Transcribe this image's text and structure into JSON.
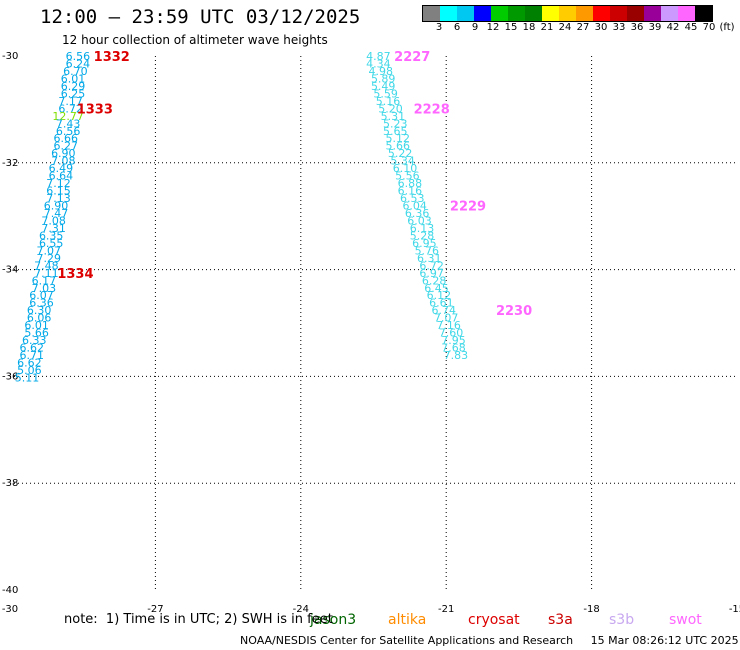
{
  "header": {
    "title": "12:00 – 23:59 UTC 03/12/2025",
    "subtitle": "12 hour collection of altimeter wave heights"
  },
  "colorbar": {
    "colors": [
      "#808080",
      "#00ffff",
      "#00c8f0",
      "#0000ff",
      "#00cc00",
      "#009900",
      "#008000",
      "#ffff00",
      "#ffcc00",
      "#ff9900",
      "#ff0000",
      "#cc0000",
      "#990000",
      "#990099",
      "#cc99ff",
      "#ff66ff",
      "#000000"
    ],
    "labels": [
      "3",
      "6",
      "9",
      "12",
      "15",
      "18",
      "21",
      "24",
      "27",
      "30",
      "33",
      "36",
      "39",
      "42",
      "45",
      "70",
      "(ft)"
    ]
  },
  "chart_data": {
    "type": "scatter",
    "title": "12:00 – 23:59 UTC 03/12/2025",
    "subtitle": "12 hour collection of altimeter wave heights",
    "xlim": [
      -30,
      -15
    ],
    "ylim": [
      -40,
      -30
    ],
    "x_ticks": [
      "-30",
      "-27",
      "-24",
      "-21",
      "-18",
      "-15"
    ],
    "y_ticks": [
      "-30",
      "-32",
      "-34",
      "-36",
      "-38",
      "-40"
    ],
    "grid": true,
    "tracks": [
      {
        "satellite": "jason3",
        "color": "#00a8e8",
        "points": [
          {
            "x": -28.6,
            "y": -30.0,
            "v": "6.56"
          },
          {
            "x": -28.6,
            "y": -30.14,
            "v": "6.24"
          },
          {
            "x": -28.65,
            "y": -30.28,
            "v": "6.70"
          },
          {
            "x": -28.7,
            "y": -30.42,
            "v": "6.01"
          },
          {
            "x": -28.7,
            "y": -30.56,
            "v": "6.29"
          },
          {
            "x": -28.7,
            "y": -30.7,
            "v": "6.25"
          },
          {
            "x": -28.75,
            "y": -30.84,
            "v": "7.17"
          },
          {
            "x": -28.75,
            "y": -30.98,
            "v": "6.72"
          },
          {
            "x": -28.8,
            "y": -31.12,
            "v": "12.77",
            "c": "#7fe000"
          },
          {
            "x": -28.8,
            "y": -31.26,
            "v": "7.43"
          },
          {
            "x": -28.8,
            "y": -31.4,
            "v": "6.56"
          },
          {
            "x": -28.85,
            "y": -31.54,
            "v": "6.66"
          },
          {
            "x": -28.85,
            "y": -31.68,
            "v": "6.27"
          },
          {
            "x": -28.9,
            "y": -31.82,
            "v": "6.90"
          },
          {
            "x": -28.9,
            "y": -31.96,
            "v": "7.08"
          },
          {
            "x": -28.95,
            "y": -32.1,
            "v": "6.49"
          },
          {
            "x": -28.95,
            "y": -32.24,
            "v": "6.64"
          },
          {
            "x": -29.0,
            "y": -32.38,
            "v": "7.12"
          },
          {
            "x": -29.0,
            "y": -32.52,
            "v": "6.15"
          },
          {
            "x": -29.0,
            "y": -32.66,
            "v": "7.13"
          },
          {
            "x": -29.05,
            "y": -32.8,
            "v": "6.90"
          },
          {
            "x": -29.05,
            "y": -32.94,
            "v": "7.47"
          },
          {
            "x": -29.1,
            "y": -33.08,
            "v": "7.08"
          },
          {
            "x": -29.1,
            "y": -33.22,
            "v": "7.31"
          },
          {
            "x": -29.15,
            "y": -33.36,
            "v": "6.35"
          },
          {
            "x": -29.15,
            "y": -33.5,
            "v": "6.55"
          },
          {
            "x": -29.2,
            "y": -33.64,
            "v": "7.07"
          },
          {
            "x": -29.2,
            "y": -33.78,
            "v": "7.29"
          },
          {
            "x": -29.25,
            "y": -33.92,
            "v": "7.48"
          },
          {
            "x": -29.25,
            "y": -34.06,
            "v": "7.11"
          },
          {
            "x": -29.3,
            "y": -34.2,
            "v": "6.17"
          },
          {
            "x": -29.3,
            "y": -34.34,
            "v": "7.03"
          },
          {
            "x": -29.35,
            "y": -34.48,
            "v": "6.07"
          },
          {
            "x": -29.35,
            "y": -34.62,
            "v": "6.36"
          },
          {
            "x": -29.4,
            "y": -34.76,
            "v": "6.30"
          },
          {
            "x": -29.4,
            "y": -34.9,
            "v": "6.06"
          },
          {
            "x": -29.45,
            "y": -35.04,
            "v": "6.01"
          },
          {
            "x": -29.45,
            "y": -35.18,
            "v": "5.66"
          },
          {
            "x": -29.5,
            "y": -35.32,
            "v": "6.33"
          },
          {
            "x": -29.55,
            "y": -35.46,
            "v": "6.62"
          },
          {
            "x": -29.55,
            "y": -35.6,
            "v": "6.71"
          },
          {
            "x": -29.6,
            "y": -35.74,
            "v": "6.62"
          },
          {
            "x": -29.6,
            "y": -35.88,
            "v": "5.06"
          },
          {
            "x": -29.65,
            "y": -36.02,
            "v": "5.11"
          }
        ],
        "passes": [
          {
            "x": -27.9,
            "y": -30.0,
            "label": "1332"
          },
          {
            "x": -28.25,
            "y": -30.98,
            "label": "1333"
          },
          {
            "x": -28.65,
            "y": -34.06,
            "label": "1334"
          }
        ]
      },
      {
        "satellite": "swot",
        "color": "#40d8e8",
        "points": [
          {
            "x": -22.4,
            "y": -30.0,
            "v": "4.87"
          },
          {
            "x": -22.4,
            "y": -30.14,
            "v": "4.34"
          },
          {
            "x": -22.35,
            "y": -30.28,
            "v": "4.98"
          },
          {
            "x": -22.3,
            "y": -30.42,
            "v": "5.89"
          },
          {
            "x": -22.3,
            "y": -30.56,
            "v": "5.49"
          },
          {
            "x": -22.25,
            "y": -30.7,
            "v": "5.59"
          },
          {
            "x": -22.2,
            "y": -30.84,
            "v": "5.16"
          },
          {
            "x": -22.15,
            "y": -30.98,
            "v": "5.20"
          },
          {
            "x": -22.1,
            "y": -31.12,
            "v": "5.31"
          },
          {
            "x": -22.05,
            "y": -31.26,
            "v": "5.23"
          },
          {
            "x": -22.05,
            "y": -31.4,
            "v": "5.65"
          },
          {
            "x": -22.0,
            "y": -31.54,
            "v": "5.12"
          },
          {
            "x": -22.0,
            "y": -31.68,
            "v": "5.66"
          },
          {
            "x": -21.95,
            "y": -31.82,
            "v": "5.22"
          },
          {
            "x": -21.9,
            "y": -31.96,
            "v": "5.34"
          },
          {
            "x": -21.85,
            "y": -32.1,
            "v": "6.10"
          },
          {
            "x": -21.8,
            "y": -32.24,
            "v": "5.56"
          },
          {
            "x": -21.75,
            "y": -32.38,
            "v": "6.88"
          },
          {
            "x": -21.75,
            "y": -32.52,
            "v": "6.16"
          },
          {
            "x": -21.7,
            "y": -32.66,
            "v": "6.53"
          },
          {
            "x": -21.65,
            "y": -32.8,
            "v": "6.04"
          },
          {
            "x": -21.6,
            "y": -32.94,
            "v": "6.36"
          },
          {
            "x": -21.55,
            "y": -33.08,
            "v": "6.03"
          },
          {
            "x": -21.5,
            "y": -33.22,
            "v": "6.13"
          },
          {
            "x": -21.5,
            "y": -33.36,
            "v": "5.28"
          },
          {
            "x": -21.45,
            "y": -33.5,
            "v": "6.95"
          },
          {
            "x": -21.4,
            "y": -33.64,
            "v": "5.76"
          },
          {
            "x": -21.35,
            "y": -33.78,
            "v": "6.31"
          },
          {
            "x": -21.3,
            "y": -33.92,
            "v": "6.72"
          },
          {
            "x": -21.3,
            "y": -34.06,
            "v": "6.97"
          },
          {
            "x": -21.25,
            "y": -34.2,
            "v": "6.28"
          },
          {
            "x": -21.2,
            "y": -34.34,
            "v": "6.45"
          },
          {
            "x": -21.15,
            "y": -34.48,
            "v": "6.12"
          },
          {
            "x": -21.1,
            "y": -34.62,
            "v": "6.61"
          },
          {
            "x": -21.05,
            "y": -34.76,
            "v": "6.74"
          },
          {
            "x": -21.0,
            "y": -34.9,
            "v": "7.07"
          },
          {
            "x": -20.95,
            "y": -35.04,
            "v": "7.16"
          },
          {
            "x": -20.9,
            "y": -35.18,
            "v": "7.60"
          },
          {
            "x": -20.85,
            "y": -35.32,
            "v": "7.95"
          },
          {
            "x": -20.85,
            "y": -35.46,
            "v": "7.68"
          },
          {
            "x": -20.8,
            "y": -35.6,
            "v": "7.83"
          }
        ],
        "passes": [
          {
            "x": -21.7,
            "y": -30.0,
            "label": "2227"
          },
          {
            "x": -21.3,
            "y": -30.98,
            "label": "2228"
          },
          {
            "x": -20.55,
            "y": -32.8,
            "label": "2229"
          },
          {
            "x": -19.6,
            "y": -34.76,
            "label": "2230"
          }
        ]
      }
    ]
  },
  "footer": {
    "note": "note:  1) Time is in UTC; 2) SWH is in feet",
    "legend": [
      {
        "name": "jason3",
        "color": "#006400",
        "x": 310
      },
      {
        "name": "altika",
        "color": "#ff8c00",
        "x": 388
      },
      {
        "name": "cryosat",
        "color": "#dd0000",
        "x": 468
      },
      {
        "name": "s3a",
        "color": "#cc0000",
        "x": 548
      },
      {
        "name": "s3b",
        "color": "#c8a8f0",
        "x": 609
      },
      {
        "name": "swot",
        "color": "#ff66ff",
        "x": 669
      }
    ],
    "credit": "NOAA/NESDIS Center for Satellite Applications and Research     15 Mar 08:26:12 UTC 2025"
  }
}
